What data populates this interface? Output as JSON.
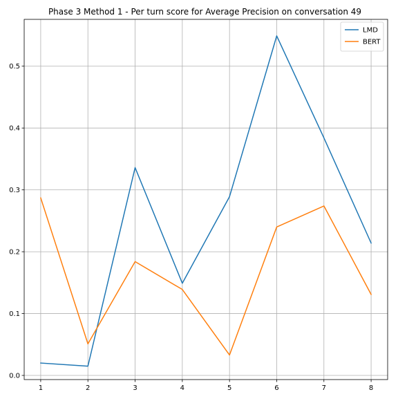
{
  "chart_data": {
    "type": "line",
    "title": "Phase 3 Method 1 - Per turn score for Average Precision on conversation 49",
    "xlabel": "",
    "ylabel": "",
    "x": [
      1,
      2,
      3,
      4,
      5,
      6,
      7,
      8
    ],
    "x_ticks": [
      "1",
      "2",
      "3",
      "4",
      "5",
      "6",
      "7",
      "8"
    ],
    "y_ticks": [
      "0.0",
      "0.1",
      "0.2",
      "0.3",
      "0.4",
      "0.5"
    ],
    "xlim": [
      0.65,
      8.35
    ],
    "ylim": [
      -0.0067,
      0.5757
    ],
    "grid": true,
    "legend": "top-right",
    "series": [
      {
        "name": "LMD",
        "color": "#1f77b4",
        "values": [
          0.02,
          0.015,
          0.336,
          0.149,
          0.289,
          0.549,
          0.384,
          0.214
        ]
      },
      {
        "name": "BERT",
        "color": "#ff7f0e",
        "values": [
          0.287,
          0.051,
          0.184,
          0.139,
          0.033,
          0.24,
          0.274,
          0.131
        ]
      }
    ]
  }
}
